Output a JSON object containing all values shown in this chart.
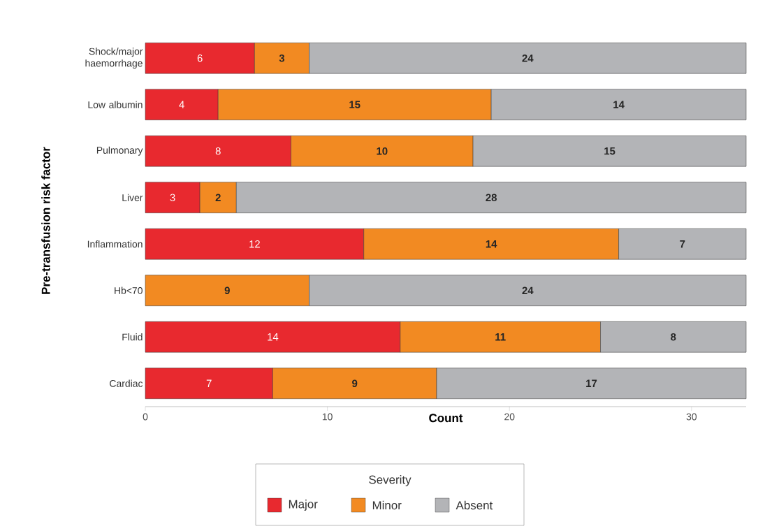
{
  "chart_data": {
    "type": "bar",
    "orientation": "horizontal",
    "stacked": true,
    "data_labels": true,
    "legend": "bottom",
    "legend_title": "Severity",
    "xlabel": "Count",
    "ylabel": "Pre-transfusion risk factor",
    "categories": [
      "Shock/major haemorrhage",
      "Low albumin",
      "Pulmonary",
      "Liver",
      "Inflammation",
      "Hb<70",
      "Fluid",
      "Cardiac"
    ],
    "series": [
      {
        "name": "Major",
        "color": "#e8292f",
        "values": [
          6,
          4,
          8,
          3,
          12,
          null,
          14,
          7
        ]
      },
      {
        "name": "Minor",
        "color": "#f28a22",
        "values": [
          3,
          15,
          10,
          2,
          14,
          9,
          11,
          9
        ]
      },
      {
        "name": "Absent",
        "color": "#b3b4b7",
        "values": [
          24,
          14,
          15,
          28,
          7,
          24,
          8,
          17
        ]
      }
    ],
    "xlim": [
      0,
      33
    ],
    "xticks": [
      0,
      10,
      20,
      30
    ]
  }
}
